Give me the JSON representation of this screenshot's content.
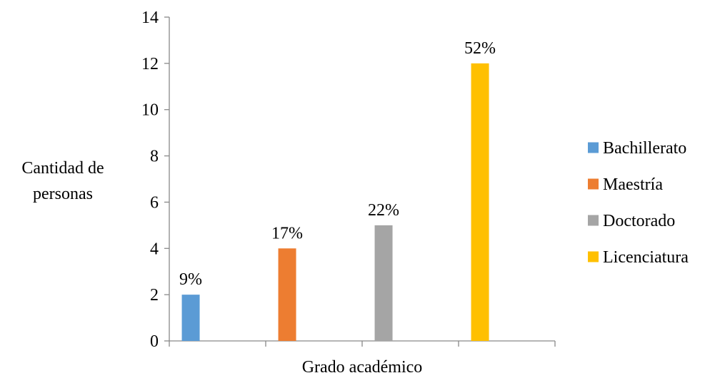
{
  "chart_data": {
    "type": "bar",
    "xlabel": "Grado académico",
    "ylabel_lines": [
      "Cantidad de",
      "personas"
    ],
    "ylim": [
      0,
      14
    ],
    "yticks": [
      0,
      2,
      4,
      6,
      8,
      10,
      12,
      14
    ],
    "grid": false,
    "legend_position": "right",
    "series": [
      {
        "name": "Bachillerato",
        "value": 2,
        "label": "9%",
        "color": "#5B9BD5"
      },
      {
        "name": "Maestría",
        "value": 4,
        "label": "17%",
        "color": "#ED7D31"
      },
      {
        "name": "Doctorado",
        "value": 5,
        "label": "22%",
        "color": "#A5A5A5"
      },
      {
        "name": "Licenciatura",
        "value": 12,
        "label": "52%",
        "color": "#FFC000"
      }
    ]
  }
}
